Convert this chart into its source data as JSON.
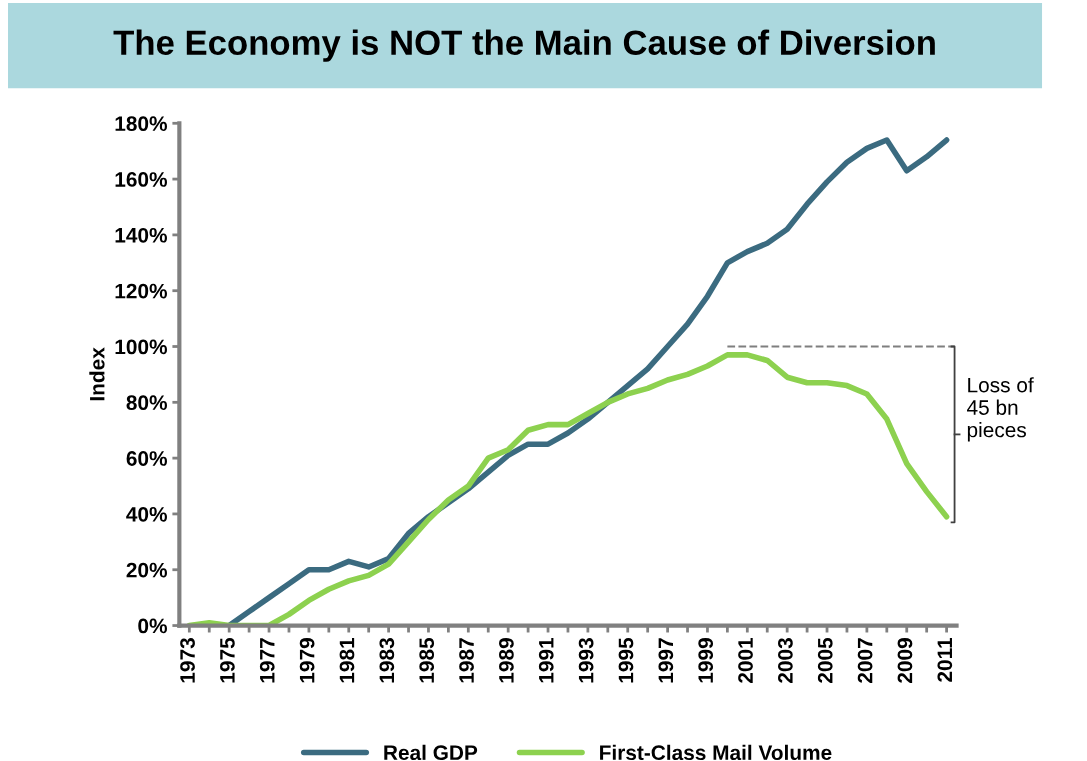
{
  "chart_data": {
    "type": "line",
    "title": "The Economy is NOT the Main Cause of Diversion",
    "ylabel": "Index",
    "categories": [
      "1973",
      null,
      "1975",
      null,
      "1977",
      null,
      "1979",
      null,
      "1981",
      null,
      "1983",
      null,
      "1985",
      null,
      "1987",
      null,
      "1989",
      null,
      "1991",
      null,
      "1993",
      null,
      "1995",
      null,
      "1997",
      null,
      "1999",
      null,
      "2001",
      null,
      "2003",
      null,
      "2005",
      null,
      "2007",
      null,
      "2009",
      null,
      "2011"
    ],
    "series": [
      {
        "name": "Real GDP",
        "color": "#3b6b80",
        "values": [
          null,
          null,
          0,
          5,
          10,
          15,
          20,
          20,
          23,
          21,
          24,
          33,
          39,
          44,
          49,
          55,
          61,
          65,
          65,
          69,
          74,
          80,
          86,
          92,
          100,
          108,
          118,
          130,
          134,
          137,
          142,
          151,
          159,
          166,
          171,
          174,
          163,
          168,
          174
        ]
      },
      {
        "name": "First-Class Mail Volume",
        "color": "#8dd14f",
        "values": [
          0,
          1,
          0,
          0,
          0,
          4,
          9,
          13,
          16,
          18,
          22,
          30,
          38,
          45,
          50,
          60,
          63,
          70,
          72,
          72,
          76,
          80,
          83,
          85,
          88,
          90,
          93,
          97,
          97,
          95,
          89,
          87,
          87,
          86,
          83,
          74,
          58,
          48,
          39
        ]
      }
    ],
    "ylim": [
      0,
      180
    ],
    "yticks": [
      {
        "value": 0,
        "label": "0%"
      },
      {
        "value": 20,
        "label": "20%"
      },
      {
        "value": 40,
        "label": "40%"
      },
      {
        "value": 60,
        "label": "60%"
      },
      {
        "value": 80,
        "label": "80%"
      },
      {
        "value": 100,
        "label": "100%"
      },
      {
        "value": 120,
        "label": "120%"
      },
      {
        "value": 140,
        "label": "140%"
      },
      {
        "value": 160,
        "label": "160%"
      },
      {
        "value": 180,
        "label": "180%"
      }
    ],
    "ref_lines": [
      {
        "axis": "y",
        "value": 100,
        "color": "#7f7f7f",
        "line_style": "dashed"
      }
    ],
    "annotations": [
      "Loss of\n45 bn\npieces"
    ],
    "grid": false,
    "legend": "bottom",
    "marker": "none",
    "line_style": "solid"
  }
}
